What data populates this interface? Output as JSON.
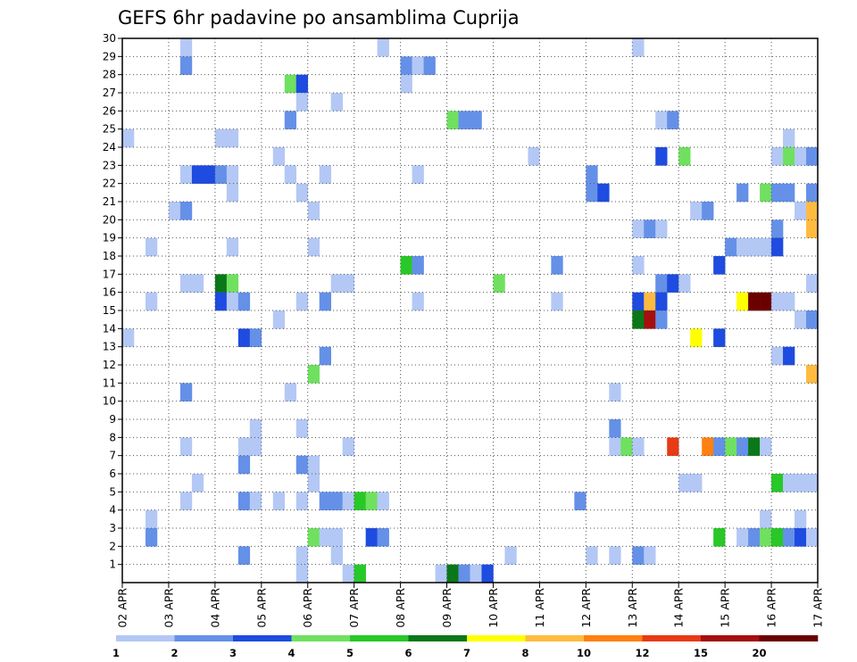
{
  "chart_data": {
    "type": "heatmap",
    "title": "GEFS 6hr padavine po ansamblima Cuprija",
    "xlabel": "",
    "ylabel": "",
    "x_ticks": [
      "02 APR",
      "03 APR",
      "04 APR",
      "05 APR",
      "06 APR",
      "07 APR",
      "08 APR",
      "09 APR",
      "10 APR",
      "11 APR",
      "12 APR",
      "13 APR",
      "14 APR",
      "15 APR",
      "16 APR",
      "17 APR"
    ],
    "x_range": [
      0,
      60
    ],
    "x_unit": "6-hour step",
    "y_ticks": [
      1,
      2,
      3,
      4,
      5,
      6,
      7,
      8,
      9,
      10,
      11,
      12,
      13,
      14,
      15,
      16,
      17,
      18,
      19,
      20,
      21,
      22,
      23,
      24,
      25,
      26,
      27,
      28,
      29,
      30
    ],
    "y_range": [
      0,
      30
    ],
    "y_unit": "ensemble member",
    "grid": true,
    "colorbar": {
      "labels": [
        "1",
        "2",
        "3",
        "4",
        "5",
        "6",
        "7",
        "8",
        "10",
        "12",
        "15",
        "20"
      ],
      "thresholds": [
        1,
        2,
        3,
        4,
        5,
        6,
        7,
        8,
        10,
        12,
        15,
        20
      ],
      "colors": [
        "#b4c8f5",
        "#6490e8",
        "#1e4be0",
        "#70e060",
        "#28c828",
        "#0a7818",
        "#ffff00",
        "#ffbb40",
        "#ff8010",
        "#e83a14",
        "#a50f0f",
        "#6b0000"
      ]
    },
    "cells": [
      {
        "member": 30,
        "x": 5,
        "c": 0
      },
      {
        "member": 30,
        "x": 22,
        "c": 0
      },
      {
        "member": 30,
        "x": 44,
        "c": 0
      },
      {
        "member": 29,
        "x": 5,
        "c": 1
      },
      {
        "member": 29,
        "x": 24,
        "c": 1
      },
      {
        "member": 29,
        "x": 25,
        "c": 0
      },
      {
        "member": 29,
        "x": 26,
        "c": 1
      },
      {
        "member": 28,
        "x": 14,
        "c": 3
      },
      {
        "member": 28,
        "x": 15,
        "c": 2
      },
      {
        "member": 28,
        "x": 24,
        "c": 0
      },
      {
        "member": 27,
        "x": 15,
        "c": 0
      },
      {
        "member": 27,
        "x": 18,
        "c": 0
      },
      {
        "member": 26,
        "x": 14,
        "c": 1
      },
      {
        "member": 26,
        "x": 28,
        "c": 3
      },
      {
        "member": 26,
        "x": 29,
        "c": 1
      },
      {
        "member": 26,
        "x": 30,
        "c": 1
      },
      {
        "member": 26,
        "x": 46,
        "c": 0
      },
      {
        "member": 26,
        "x": 47,
        "c": 1
      },
      {
        "member": 25,
        "x": 0,
        "c": 0
      },
      {
        "member": 25,
        "x": 8,
        "c": 0
      },
      {
        "member": 25,
        "x": 9,
        "c": 0
      },
      {
        "member": 25,
        "x": 57,
        "c": 0
      },
      {
        "member": 24,
        "x": 13,
        "c": 0
      },
      {
        "member": 24,
        "x": 35,
        "c": 0
      },
      {
        "member": 24,
        "x": 46,
        "c": 2
      },
      {
        "member": 24,
        "x": 48,
        "c": 3
      },
      {
        "member": 24,
        "x": 56,
        "c": 0
      },
      {
        "member": 24,
        "x": 57,
        "c": 3
      },
      {
        "member": 24,
        "x": 58,
        "c": 0
      },
      {
        "member": 24,
        "x": 59,
        "c": 1
      },
      {
        "member": 23,
        "x": 5,
        "c": 0
      },
      {
        "member": 23,
        "x": 6,
        "c": 2
      },
      {
        "member": 23,
        "x": 7,
        "c": 2
      },
      {
        "member": 23,
        "x": 8,
        "c": 1
      },
      {
        "member": 23,
        "x": 9,
        "c": 0
      },
      {
        "member": 23,
        "x": 14,
        "c": 0
      },
      {
        "member": 23,
        "x": 17,
        "c": 0
      },
      {
        "member": 23,
        "x": 25,
        "c": 0
      },
      {
        "member": 23,
        "x": 40,
        "c": 1
      },
      {
        "member": 22,
        "x": 9,
        "c": 0
      },
      {
        "member": 22,
        "x": 15,
        "c": 0
      },
      {
        "member": 22,
        "x": 40,
        "c": 1
      },
      {
        "member": 22,
        "x": 41,
        "c": 2
      },
      {
        "member": 22,
        "x": 53,
        "c": 1
      },
      {
        "member": 22,
        "x": 55,
        "c": 3
      },
      {
        "member": 22,
        "x": 56,
        "c": 1
      },
      {
        "member": 22,
        "x": 57,
        "c": 1
      },
      {
        "member": 22,
        "x": 59,
        "c": 1
      },
      {
        "member": 21,
        "x": 4,
        "c": 0
      },
      {
        "member": 21,
        "x": 5,
        "c": 1
      },
      {
        "member": 21,
        "x": 16,
        "c": 0
      },
      {
        "member": 21,
        "x": 49,
        "c": 0
      },
      {
        "member": 21,
        "x": 50,
        "c": 1
      },
      {
        "member": 21,
        "x": 58,
        "c": 0
      },
      {
        "member": 21,
        "x": 59,
        "c": 7
      },
      {
        "member": 20,
        "x": 44,
        "c": 0
      },
      {
        "member": 20,
        "x": 45,
        "c": 1
      },
      {
        "member": 20,
        "x": 46,
        "c": 0
      },
      {
        "member": 20,
        "x": 56,
        "c": 1
      },
      {
        "member": 20,
        "x": 59,
        "c": 7
      },
      {
        "member": 19,
        "x": 2,
        "c": 0
      },
      {
        "member": 19,
        "x": 9,
        "c": 0
      },
      {
        "member": 19,
        "x": 16,
        "c": 0
      },
      {
        "member": 19,
        "x": 52,
        "c": 1
      },
      {
        "member": 19,
        "x": 53,
        "c": 0
      },
      {
        "member": 19,
        "x": 54,
        "c": 0
      },
      {
        "member": 19,
        "x": 55,
        "c": 0
      },
      {
        "member": 19,
        "x": 56,
        "c": 2
      },
      {
        "member": 18,
        "x": 24,
        "c": 4
      },
      {
        "member": 18,
        "x": 25,
        "c": 1
      },
      {
        "member": 18,
        "x": 37,
        "c": 1
      },
      {
        "member": 18,
        "x": 44,
        "c": 0
      },
      {
        "member": 18,
        "x": 51,
        "c": 2
      },
      {
        "member": 17,
        "x": 5,
        "c": 0
      },
      {
        "member": 17,
        "x": 6,
        "c": 0
      },
      {
        "member": 17,
        "x": 8,
        "c": 5
      },
      {
        "member": 17,
        "x": 9,
        "c": 3
      },
      {
        "member": 17,
        "x": 18,
        "c": 0
      },
      {
        "member": 17,
        "x": 19,
        "c": 0
      },
      {
        "member": 17,
        "x": 32,
        "c": 3
      },
      {
        "member": 17,
        "x": 46,
        "c": 1
      },
      {
        "member": 17,
        "x": 47,
        "c": 2
      },
      {
        "member": 17,
        "x": 48,
        "c": 0
      },
      {
        "member": 17,
        "x": 59,
        "c": 0
      },
      {
        "member": 16,
        "x": 2,
        "c": 0
      },
      {
        "member": 16,
        "x": 8,
        "c": 2
      },
      {
        "member": 16,
        "x": 9,
        "c": 0
      },
      {
        "member": 16,
        "x": 10,
        "c": 1
      },
      {
        "member": 16,
        "x": 15,
        "c": 0
      },
      {
        "member": 16,
        "x": 17,
        "c": 1
      },
      {
        "member": 16,
        "x": 25,
        "c": 0
      },
      {
        "member": 16,
        "x": 37,
        "c": 0
      },
      {
        "member": 16,
        "x": 44,
        "c": 2
      },
      {
        "member": 16,
        "x": 45,
        "c": 7
      },
      {
        "member": 16,
        "x": 46,
        "c": 2
      },
      {
        "member": 16,
        "x": 53,
        "c": 6
      },
      {
        "member": 16,
        "x": 54,
        "c": 11
      },
      {
        "member": 16,
        "x": 55,
        "c": 11
      },
      {
        "member": 16,
        "x": 56,
        "c": 0
      },
      {
        "member": 16,
        "x": 57,
        "c": 0
      },
      {
        "member": 15,
        "x": 13,
        "c": 0
      },
      {
        "member": 15,
        "x": 44,
        "c": 5
      },
      {
        "member": 15,
        "x": 45,
        "c": 10
      },
      {
        "member": 15,
        "x": 46,
        "c": 1
      },
      {
        "member": 15,
        "x": 58,
        "c": 0
      },
      {
        "member": 15,
        "x": 59,
        "c": 1
      },
      {
        "member": 14,
        "x": 0,
        "c": 0
      },
      {
        "member": 14,
        "x": 10,
        "c": 2
      },
      {
        "member": 14,
        "x": 11,
        "c": 1
      },
      {
        "member": 14,
        "x": 49,
        "c": 6
      },
      {
        "member": 14,
        "x": 51,
        "c": 2
      },
      {
        "member": 13,
        "x": 17,
        "c": 1
      },
      {
        "member": 13,
        "x": 56,
        "c": 0
      },
      {
        "member": 13,
        "x": 57,
        "c": 2
      },
      {
        "member": 12,
        "x": 16,
        "c": 3
      },
      {
        "member": 12,
        "x": 59,
        "c": 7
      },
      {
        "member": 11,
        "x": 5,
        "c": 1
      },
      {
        "member": 11,
        "x": 14,
        "c": 0
      },
      {
        "member": 11,
        "x": 42,
        "c": 0
      },
      {
        "member": 9,
        "x": 11,
        "c": 0
      },
      {
        "member": 9,
        "x": 15,
        "c": 0
      },
      {
        "member": 9,
        "x": 42,
        "c": 1
      },
      {
        "member": 8,
        "x": 5,
        "c": 0
      },
      {
        "member": 8,
        "x": 10,
        "c": 0
      },
      {
        "member": 8,
        "x": 11,
        "c": 0
      },
      {
        "member": 8,
        "x": 19,
        "c": 0
      },
      {
        "member": 8,
        "x": 42,
        "c": 0
      },
      {
        "member": 8,
        "x": 43,
        "c": 3
      },
      {
        "member": 8,
        "x": 44,
        "c": 0
      },
      {
        "member": 8,
        "x": 47,
        "c": 9
      },
      {
        "member": 8,
        "x": 50,
        "c": 8
      },
      {
        "member": 8,
        "x": 51,
        "c": 1
      },
      {
        "member": 8,
        "x": 52,
        "c": 3
      },
      {
        "member": 8,
        "x": 53,
        "c": 1
      },
      {
        "member": 8,
        "x": 54,
        "c": 5
      },
      {
        "member": 8,
        "x": 55,
        "c": 0
      },
      {
        "member": 7,
        "x": 10,
        "c": 1
      },
      {
        "member": 7,
        "x": 15,
        "c": 1
      },
      {
        "member": 7,
        "x": 16,
        "c": 0
      },
      {
        "member": 6,
        "x": 6,
        "c": 0
      },
      {
        "member": 6,
        "x": 16,
        "c": 0
      },
      {
        "member": 6,
        "x": 48,
        "c": 0
      },
      {
        "member": 6,
        "x": 49,
        "c": 0
      },
      {
        "member": 6,
        "x": 56,
        "c": 4
      },
      {
        "member": 6,
        "x": 57,
        "c": 0
      },
      {
        "member": 6,
        "x": 58,
        "c": 0
      },
      {
        "member": 6,
        "x": 59,
        "c": 0
      },
      {
        "member": 5,
        "x": 5,
        "c": 0
      },
      {
        "member": 5,
        "x": 10,
        "c": 1
      },
      {
        "member": 5,
        "x": 11,
        "c": 0
      },
      {
        "member": 5,
        "x": 13,
        "c": 0
      },
      {
        "member": 5,
        "x": 15,
        "c": 0
      },
      {
        "member": 5,
        "x": 17,
        "c": 1
      },
      {
        "member": 5,
        "x": 18,
        "c": 1
      },
      {
        "member": 5,
        "x": 19,
        "c": 0
      },
      {
        "member": 5,
        "x": 20,
        "c": 4
      },
      {
        "member": 5,
        "x": 21,
        "c": 3
      },
      {
        "member": 5,
        "x": 22,
        "c": 0
      },
      {
        "member": 5,
        "x": 39,
        "c": 1
      },
      {
        "member": 4,
        "x": 2,
        "c": 0
      },
      {
        "member": 4,
        "x": 55,
        "c": 0
      },
      {
        "member": 4,
        "x": 58,
        "c": 0
      },
      {
        "member": 3,
        "x": 2,
        "c": 1
      },
      {
        "member": 3,
        "x": 16,
        "c": 3
      },
      {
        "member": 3,
        "x": 17,
        "c": 0
      },
      {
        "member": 3,
        "x": 18,
        "c": 0
      },
      {
        "member": 3,
        "x": 21,
        "c": 2
      },
      {
        "member": 3,
        "x": 22,
        "c": 1
      },
      {
        "member": 3,
        "x": 51,
        "c": 4
      },
      {
        "member": 3,
        "x": 53,
        "c": 0
      },
      {
        "member": 3,
        "x": 54,
        "c": 1
      },
      {
        "member": 3,
        "x": 55,
        "c": 3
      },
      {
        "member": 3,
        "x": 56,
        "c": 4
      },
      {
        "member": 3,
        "x": 57,
        "c": 1
      },
      {
        "member": 3,
        "x": 58,
        "c": 2
      },
      {
        "member": 3,
        "x": 59,
        "c": 0
      },
      {
        "member": 2,
        "x": 10,
        "c": 1
      },
      {
        "member": 2,
        "x": 15,
        "c": 0
      },
      {
        "member": 2,
        "x": 18,
        "c": 0
      },
      {
        "member": 2,
        "x": 33,
        "c": 0
      },
      {
        "member": 2,
        "x": 40,
        "c": 0
      },
      {
        "member": 2,
        "x": 42,
        "c": 0
      },
      {
        "member": 2,
        "x": 44,
        "c": 1
      },
      {
        "member": 2,
        "x": 45,
        "c": 0
      },
      {
        "member": 1,
        "x": 15,
        "c": 0
      },
      {
        "member": 1,
        "x": 19,
        "c": 0
      },
      {
        "member": 1,
        "x": 20,
        "c": 4
      },
      {
        "member": 1,
        "x": 27,
        "c": 0
      },
      {
        "member": 1,
        "x": 28,
        "c": 5
      },
      {
        "member": 1,
        "x": 29,
        "c": 1
      },
      {
        "member": 1,
        "x": 30,
        "c": 0
      },
      {
        "member": 1,
        "x": 31,
        "c": 2
      }
    ]
  }
}
